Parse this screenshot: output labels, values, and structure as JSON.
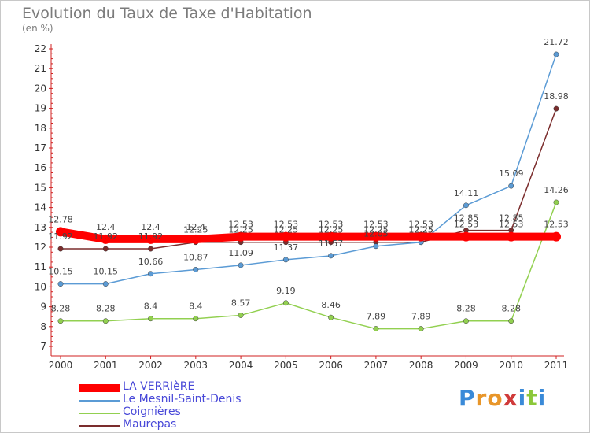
{
  "chart_data": {
    "type": "line",
    "title": "Evolution du Taux de Taxe d'Habitation",
    "unit_label": "(en %)",
    "x": [
      "2000",
      "2001",
      "2002",
      "2003",
      "2004",
      "2005",
      "2006",
      "2007",
      "2008",
      "2009",
      "2010",
      "2011"
    ],
    "ylim": [
      7,
      22
    ],
    "yticks": [
      7,
      8,
      9,
      10,
      11,
      12,
      13,
      14,
      15,
      16,
      17,
      18,
      19,
      20,
      21,
      22
    ],
    "grid": false,
    "legend_position": "bottom-left",
    "series": [
      {
        "name": "LA VERRIèRE",
        "color": "#ff0000",
        "values": [
          12.78,
          12.4,
          12.4,
          12.4,
          12.53,
          12.53,
          12.53,
          12.53,
          12.53,
          12.53,
          12.53,
          12.53
        ],
        "labels": [
          "12.78",
          "12.4",
          "12.4",
          "12.4",
          "12.53",
          "12.53",
          "12.53",
          "12.53",
          "12.53",
          "12.53",
          "12.53",
          "12.53"
        ]
      },
      {
        "name": "Le Mesnil-Saint-Denis",
        "color": "#5b9bd5",
        "values": [
          10.15,
          10.15,
          10.66,
          10.87,
          11.09,
          11.37,
          11.57,
          12.05,
          12.25,
          14.11,
          15.09,
          21.72
        ],
        "labels": [
          "10.15",
          "10.15",
          "10.66",
          "10.87",
          "11.09",
          "11.37",
          "11.57",
          "12.05",
          "12.25",
          "14.11",
          "15.09",
          "21.72"
        ]
      },
      {
        "name": "Coignières",
        "color": "#92d050",
        "values": [
          8.28,
          8.28,
          8.4,
          8.4,
          8.57,
          9.19,
          8.46,
          7.89,
          7.89,
          8.28,
          8.28,
          14.26
        ],
        "labels": [
          "8.28",
          "8.28",
          "8.4",
          "8.4",
          "8.57",
          "9.19",
          "8.46",
          "7.89",
          "7.89",
          "8.28",
          "8.28",
          "14.26"
        ]
      },
      {
        "name": "Maurepas",
        "color": "#7b2d2d",
        "values": [
          11.92,
          11.92,
          11.92,
          12.25,
          12.25,
          12.25,
          12.25,
          12.25,
          12.25,
          12.85,
          12.85,
          18.98
        ],
        "labels": [
          "11.92",
          "11.92",
          "11.92",
          "12.25",
          "12.25",
          "12.25",
          "12.25",
          "12.25",
          "12.25",
          "12.85",
          "12.85",
          "18.98"
        ]
      }
    ]
  },
  "logo": {
    "letters": [
      "P",
      "r",
      "o",
      "x",
      "i",
      "t",
      "i"
    ],
    "colors": [
      "#3a8ad8",
      "#e8962a",
      "#e8962a",
      "#d03a3a",
      "#3a8ad8",
      "#8cc83a",
      "#3a8ad8"
    ]
  }
}
